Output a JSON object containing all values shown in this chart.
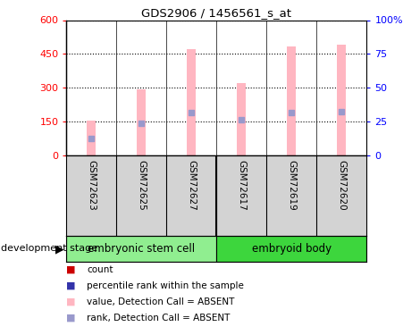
{
  "title": "GDS2906 / 1456561_s_at",
  "samples": [
    "GSM72623",
    "GSM72625",
    "GSM72627",
    "GSM72617",
    "GSM72619",
    "GSM72620"
  ],
  "pink_values": [
    155,
    295,
    470,
    320,
    485,
    490
  ],
  "blue_ranks": [
    75,
    143,
    193,
    158,
    193,
    195
  ],
  "ylim_left": [
    0,
    600
  ],
  "ylim_right": [
    0,
    100
  ],
  "yticks_left": [
    0,
    150,
    300,
    450,
    600
  ],
  "ytick_labels_left": [
    "0",
    "150",
    "300",
    "450",
    "600"
  ],
  "yticks_right": [
    0,
    25,
    50,
    75,
    100
  ],
  "ytick_labels_right": [
    "0",
    "25",
    "50",
    "75",
    "100%"
  ],
  "groups": [
    {
      "label": "embryonic stem cell",
      "indices": [
        0,
        1,
        2
      ],
      "color": "#90EE90"
    },
    {
      "label": "embryoid body",
      "indices": [
        3,
        4,
        5
      ],
      "color": "#3DD63D"
    }
  ],
  "group_label": "development stage",
  "pink_color": "#FFB6C1",
  "blue_color": "#9999CC",
  "red_dot_color": "#CC0000",
  "blue_dot_color": "#3333AA",
  "bar_width": 0.18,
  "bg_color": "#FFFFFF",
  "plot_bg": "#FFFFFF",
  "legend_items": [
    {
      "color": "#CC0000",
      "label": "count"
    },
    {
      "color": "#3333AA",
      "label": "percentile rank within the sample"
    },
    {
      "color": "#FFB6C1",
      "label": "value, Detection Call = ABSENT"
    },
    {
      "color": "#9999CC",
      "label": "rank, Detection Call = ABSENT"
    }
  ],
  "grid_color": "#000000",
  "grid_linestyle": "dotted",
  "grid_linewidth": 0.8,
  "sample_bg": "#D3D3D3",
  "sep_color": "#FFFFFF"
}
